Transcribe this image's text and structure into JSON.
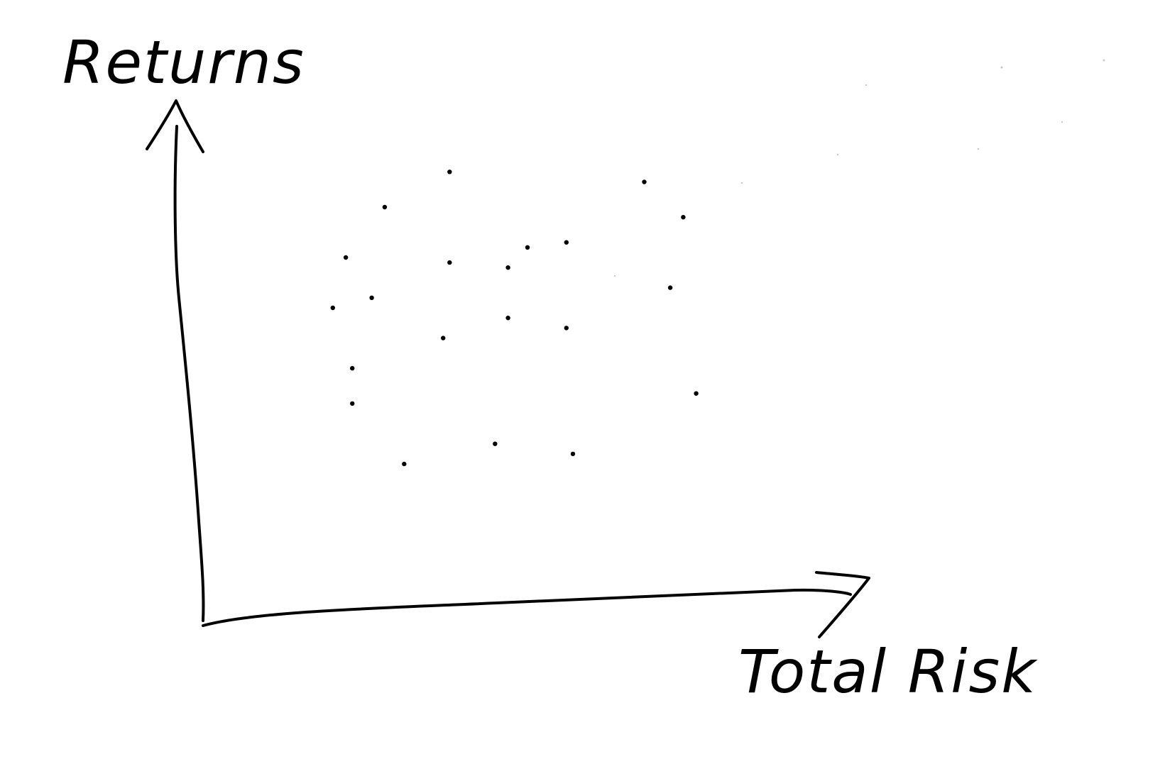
{
  "chart_data": {
    "type": "scatter",
    "title": "",
    "xlabel": "Total Risk",
    "ylabel": "Returns",
    "grid": false,
    "legend": "none",
    "xlim": [
      0,
      100
    ],
    "ylim": [
      0,
      100
    ],
    "series": [
      {
        "points": [
          {
            "x": 26,
            "y": 62
          },
          {
            "x": 20,
            "y": 60
          },
          {
            "x": 23,
            "y": 48
          },
          {
            "x": 22,
            "y": 70
          },
          {
            "x": 38,
            "y": 87
          },
          {
            "x": 50,
            "y": 72
          },
          {
            "x": 28,
            "y": 80
          },
          {
            "x": 56,
            "y": 73
          },
          {
            "x": 47,
            "y": 68
          },
          {
            "x": 68,
            "y": 85
          },
          {
            "x": 38,
            "y": 69
          },
          {
            "x": 74,
            "y": 78
          },
          {
            "x": 47,
            "y": 58
          },
          {
            "x": 56,
            "y": 56
          },
          {
            "x": 72,
            "y": 64
          },
          {
            "x": 37,
            "y": 54
          },
          {
            "x": 23,
            "y": 41
          },
          {
            "x": 76,
            "y": 43
          },
          {
            "x": 31,
            "y": 29
          },
          {
            "x": 45,
            "y": 33
          },
          {
            "x": 57,
            "y": 31
          }
        ]
      }
    ]
  }
}
